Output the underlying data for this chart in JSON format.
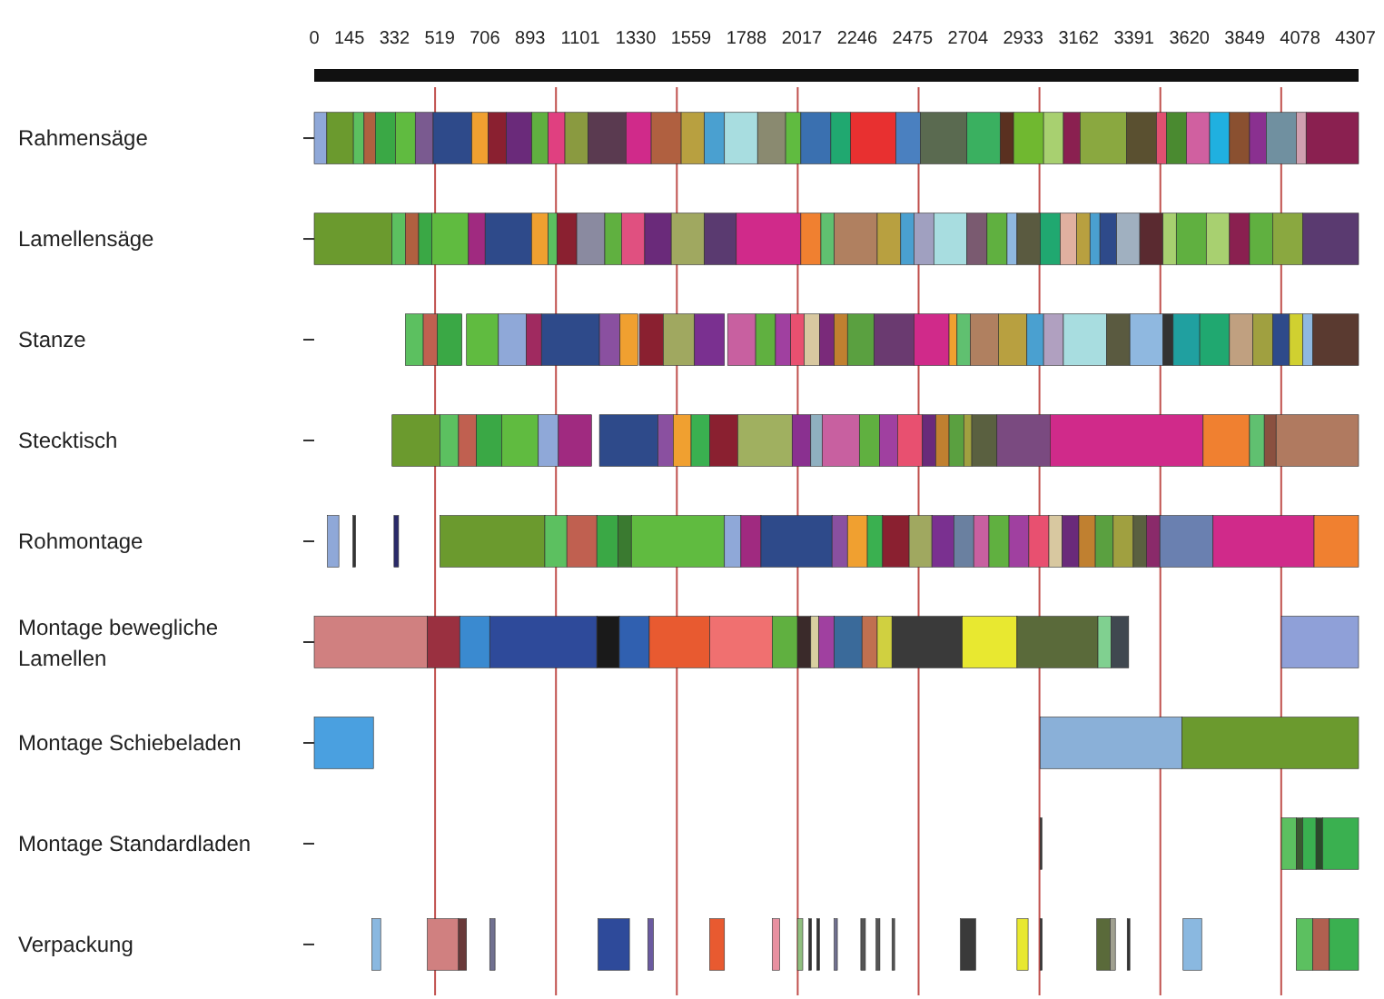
{
  "chart_data": {
    "type": "bar",
    "orientation": "horizontal",
    "categories": [
      "Rahmensäge",
      "Lamellensäge",
      "Stanze",
      "Stecktisch",
      "Rohmontage",
      "Montage bewegliche Lamellen",
      "Montage Schiebeladen",
      "Montage Standardladen",
      "Verpackung"
    ],
    "xlim": [
      0,
      4320
    ],
    "xticks": [
      0,
      145,
      332,
      519,
      706,
      893,
      1101,
      1330,
      1559,
      1788,
      2017,
      2246,
      2475,
      2704,
      2933,
      3162,
      3391,
      3620,
      3849,
      4078,
      4307
    ],
    "ref_lines": [
      {
        "axis": "x",
        "value": 500,
        "color": "#c0504d"
      },
      {
        "axis": "x",
        "value": 1000,
        "color": "#c0504d"
      },
      {
        "axis": "x",
        "value": 1500,
        "color": "#c0504d"
      },
      {
        "axis": "x",
        "value": 2000,
        "color": "#c0504d"
      },
      {
        "axis": "x",
        "value": 2500,
        "color": "#c0504d"
      },
      {
        "axis": "x",
        "value": 3000,
        "color": "#c0504d"
      },
      {
        "axis": "x",
        "value": 3500,
        "color": "#c0504d"
      },
      {
        "axis": "x",
        "value": 4000,
        "color": "#c0504d"
      }
    ],
    "series": [
      {
        "base": [
          0,
          0,
          377,
          322,
          55,
          0,
          0,
          3003,
          239
        ],
        "values": [
          52,
          322,
          74,
          198,
          47,
          468,
          245,
          7,
          36
        ],
        "colors": [
          "#8fa8d8",
          "#6b9a2e",
          "#5cc060",
          "#6b9a2e",
          "#8fa8d8",
          "#d08080",
          "#4aa0e0",
          "#333333",
          "#8ab8e0"
        ]
      },
      {
        "base": [
          52,
          322,
          451,
          520,
          160,
          468,
          3003,
          4001,
          468
        ],
        "values": [
          110,
          55,
          58,
          77,
          11,
          134,
          586,
          61,
          129
        ],
        "colors": [
          "#6b9a2e",
          "#5cc060",
          "#c06050",
          "#5cc060",
          "#333333",
          "#9a3040",
          "#8ab0d8",
          "#5cc060",
          "#d08080"
        ]
      },
      {
        "base": [
          162,
          377,
          509,
          597,
          330,
          602,
          3589,
          4062,
          597
        ],
        "values": [
          44,
          55,
          102,
          74,
          19,
          124,
          731,
          27,
          33
        ],
        "colors": [
          "#5cc060",
          "#b06040",
          "#3aa845",
          "#c06050",
          "#2a2a6a",
          "#3a8ad0",
          "#6b9a2e",
          "#3a5a30",
          "#6a3a3a"
        ]
      },
      {
        "base": [
          206,
          432,
          630,
          671,
          520,
          726,
          null,
          4089,
          726
        ],
        "values": [
          47,
          55,
          132,
          105,
          434,
          443,
          null,
          55,
          22
        ],
        "colors": [
          "#b06040",
          "#3aa845",
          "#60bb40",
          "#3aa845",
          "#6b9a2e",
          "#2e4a9a",
          null,
          "#3ab050",
          "#707090"
        ]
      },
      {
        "base": [
          253,
          487,
          762,
          776,
          954,
          1169,
          null,
          4144,
          1174
        ],
        "values": [
          83,
          151,
          115,
          151,
          91,
          93,
          null,
          27,
          130
        ],
        "colors": [
          "#3aa845",
          "#60bb40",
          "#8fa8d8",
          "#60bb40",
          "#5cc060",
          "#1a1a1a",
          null,
          "#2a4a2a",
          "#2e4a9a"
        ]
      },
      {
        "base": [
          336,
          638,
          877,
          927,
          1045,
          1262,
          null,
          4171,
          1380
        ],
        "values": [
          82,
          69,
          63,
          83,
          124,
          124,
          null,
          149,
          23
        ],
        "colors": [
          "#60bb40",
          "#a02a80",
          "#a02a60",
          "#8fa8d8",
          "#c06050",
          "#3060b0",
          null,
          "#3ab050",
          "#6a5aa0"
        ]
      },
      {
        "base": [
          418,
          707,
          940,
          1010,
          1169,
          1386,
          null,
          null,
          1636
        ],
        "values": [
          74,
          192,
          240,
          137,
          88,
          250,
          null,
          null,
          61
        ],
        "colors": [
          "#7a5a90",
          "#2e4a8a",
          "#2e4a8a",
          "#a02a80",
          "#3aa845",
          "#e85a30",
          null,
          null,
          "#e85a30"
        ]
      },
      {
        "base": [
          492,
          899,
          1180,
          1180,
          1257,
          1636,
          null,
          null,
          1895
        ],
        "values": [
          160,
          69,
          85,
          242,
          55,
          259,
          null,
          null,
          30
        ],
        "colors": [
          "#2e4a8a",
          "#f0a030",
          "#8a50a0",
          "#2e4a8a",
          "#3a7a30",
          "#f07070",
          null,
          null,
          "#e890a0"
        ]
      },
      {
        "base": [
          652,
          968,
          1265,
          1422,
          1312,
          1895,
          null,
          null,
          1999
        ],
        "values": [
          68,
          36,
          74,
          63,
          385,
          104,
          null,
          null,
          22
        ],
        "colors": [
          "#f0a030",
          "#5cc060",
          "#f0a030",
          "#8a50a0",
          "#60bb40",
          "#60b040",
          null,
          null,
          "#90c080"
        ]
      },
      {
        "base": [
          720,
          1004,
          1345,
          1485,
          1697,
          1999,
          null,
          null,
          2046
        ],
        "values": [
          75,
          82,
          99,
          74,
          68,
          55,
          null,
          null,
          11
        ],
        "colors": [
          "#8a2030",
          "#8a2030",
          "#8a2030",
          "#f0a030",
          "#8fa8d8",
          "#3a2a2a",
          null,
          null,
          "#333333"
        ]
      },
      {
        "base": [
          795,
          1086,
          1444,
          1559,
          1765,
          2054,
          null,
          null,
          2079
        ],
        "values": [
          105,
          116,
          129,
          77,
          83,
          33,
          null,
          null,
          11
        ],
        "colors": [
          "#6a2a7a",
          "#8a8aa0",
          "#a0a860",
          "#3ab050",
          "#a02a80",
          "#d8d0a0",
          null,
          null,
          "#333333"
        ]
      },
      {
        "base": [
          900,
          1202,
          1573,
          1636,
          1848,
          2087,
          null,
          null,
          2151
        ],
        "values": [
          68,
          69,
          124,
          116,
          294,
          64,
          null,
          null,
          13
        ],
        "colors": [
          "#60b040",
          "#60b040",
          "#7a3090",
          "#8a2030",
          "#2e4a8a",
          "#a040a0",
          null,
          null,
          "#707090"
        ]
      },
      {
        "base": [
          968,
          1271,
          1710,
          1752,
          2142,
          2151,
          null,
          null,
          2261
        ],
        "values": [
          69,
          96,
          116,
          225,
          64,
          115,
          null,
          null,
          19
        ],
        "colors": [
          "#e04080",
          "#e05080",
          "#c860a0",
          "#a0b060",
          "#8a50a0",
          "#3a6a9a",
          null,
          null,
          "#555555"
        ]
      },
      {
        "base": [
          1037,
          1367,
          1826,
          1977,
          2206,
          2266,
          null,
          null,
          2324
        ],
        "values": [
          96,
          110,
          82,
          77,
          82,
          63,
          null,
          null,
          16
        ],
        "colors": [
          "#8a9a40",
          "#6a2a7a",
          "#60b040",
          "#8a3090",
          "#f0a030",
          "#c07050",
          null,
          null,
          "#555555"
        ]
      },
      {
        "base": [
          1133,
          1477,
          1908,
          2054,
          2288,
          2329,
          null,
          null,
          2390
        ],
        "values": [
          157,
          137,
          63,
          47,
          63,
          61,
          null,
          null,
          11
        ],
        "colors": [
          "#5a3a50",
          "#a0a860",
          "#a040a0",
          "#8fb0c0",
          "#3ab050",
          "#d0d040",
          null,
          null,
          "#555555"
        ]
      },
      {
        "base": [
          1290,
          1614,
          1971,
          2101,
          2351,
          2390,
          null,
          null,
          2673
        ],
        "values": [
          104,
          132,
          56,
          154,
          110,
          291,
          null,
          null,
          63
        ],
        "colors": [
          "#d02a8a",
          "#5a3a70",
          "#e85070",
          "#c860a0",
          "#8a2030",
          "#3a3a3a",
          null,
          null,
          "#3a3a3a"
        ]
      },
      {
        "base": [
          1394,
          1746,
          2027,
          2255,
          2461,
          2681,
          null,
          null,
          2907
        ],
        "values": [
          124,
          267,
          63,
          83,
          94,
          226,
          null,
          null,
          46
        ],
        "colors": [
          "#b06040",
          "#d02a8a",
          "#d8c8a0",
          "#60b040",
          "#a0a860",
          "#e8e830",
          null,
          null,
          "#e8e830"
        ]
      },
      {
        "base": [
          1518,
          2013,
          2090,
          2338,
          2555,
          2907,
          null,
          null,
          3003
        ],
        "values": [
          96,
          83,
          61,
          75,
          91,
          335,
          null,
          null,
          8
        ],
        "colors": [
          "#b8a040",
          "#f08030",
          "#7a2a7a",
          "#a040a0",
          "#7a3090",
          "#5a6a3a",
          null,
          null,
          "#333333"
        ]
      },
      {
        "base": [
          1614,
          2096,
          2151,
          2413,
          2646,
          3242,
          null,
          null,
          3237
        ],
        "values": [
          83,
          55,
          55,
          103,
          82,
          55,
          null,
          null,
          55
        ],
        "colors": [
          "#4aa0d0",
          "#60c070",
          "#c08030",
          "#e85070",
          "#6a80a0",
          "#80d090",
          null,
          null,
          "#5a6a3a"
        ]
      },
      {
        "base": [
          1697,
          2151,
          2206,
          2516,
          2728,
          3297,
          null,
          null,
          3292
        ],
        "values": [
          137,
          178,
          110,
          55,
          63,
          72,
          null,
          null,
          22
        ],
        "colors": [
          "#a8dde0",
          "#b08060",
          "#5aa040",
          "#6a2a7a",
          "#c860a0",
          "#404850",
          null,
          null,
          "#a0a090"
        ]
      },
      {
        "base": [
          1834,
          2329,
          2316,
          2571,
          2791,
          4001,
          null,
          null,
          3363
        ],
        "values": [
          116,
          97,
          165,
          55,
          83,
          319,
          null,
          null,
          11
        ],
        "colors": [
          "#8a8a70",
          "#b8a040",
          "#6a3a70",
          "#c08030",
          "#60b040",
          "#8fa0d8",
          null,
          null,
          "#333333"
        ]
      },
      {
        "base": [
          1950,
          2426,
          2481,
          2626,
          2874,
          null,
          null,
          null,
          3594
        ],
        "values": [
          63,
          55,
          145,
          61,
          82,
          null,
          null,
          null,
          77
        ],
        "colors": [
          "#60bb40",
          "#4aa0d0",
          "#d02a8a",
          "#5aa040",
          "#a040a0",
          null,
          null,
          null,
          "#8ab8e0"
        ]
      },
      {
        "base": [
          2013,
          2481,
          2626,
          2687,
          2956,
          null,
          null,
          null,
          4062
        ],
        "values": [
          124,
          82,
          33,
          33,
          83,
          null,
          null,
          null,
          69
        ],
        "colors": [
          "#3a70b0",
          "#a0a0c0",
          "#f0a030",
          "#a0a040",
          "#e85070",
          null,
          null,
          null,
          "#5cc060"
        ]
      },
      {
        "base": [
          2137,
          2563,
          2659,
          2720,
          3039,
          null,
          null,
          null,
          4131
        ],
        "values": [
          82,
          137,
          55,
          104,
          55,
          null,
          null,
          null,
          68
        ],
        "colors": [
          "#20a870",
          "#a8dde0",
          "#60c070",
          "#5a6040",
          "#d8c8a0",
          null,
          null,
          null,
          "#b06050"
        ]
      },
      {
        "base": [
          2219,
          2700,
          2714,
          2824,
          3094,
          null,
          null,
          null,
          4199
        ],
        "values": [
          187,
          83,
          116,
          220,
          69,
          null,
          null,
          null,
          121
        ],
        "colors": [
          "#e83030",
          "#7a5a70",
          "#b08060",
          "#7a4a80",
          "#6a2a7a",
          null,
          null,
          null,
          "#3ab050"
        ]
      },
      {
        "base": [
          2406,
          2783,
          2830,
          3044,
          3163,
          null,
          null,
          null,
          null
        ],
        "values": [
          102,
          83,
          118,
          633,
          68,
          null,
          null,
          null,
          null
        ],
        "colors": [
          "#4a80c0",
          "#60b040",
          "#b8a040",
          "#d02a8a",
          "#c08030",
          null,
          null,
          null,
          null
        ]
      },
      {
        "base": [
          2508,
          2866,
          2948,
          3677,
          3231,
          null,
          null,
          null,
          null
        ],
        "values": [
          192,
          41,
          69,
          192,
          74,
          null,
          null,
          null,
          null
        ],
        "colors": [
          "#5a6a50",
          "#8fb8e0",
          "#4aa0d0",
          "#f08030",
          "#5aa040",
          null,
          null,
          null,
          null
        ]
      },
      {
        "base": [
          2700,
          2907,
          3017,
          3869,
          3305,
          null,
          null,
          null,
          null
        ],
        "values": [
          138,
          96,
          82,
          61,
          83,
          null,
          null,
          null,
          null
        ],
        "colors": [
          "#3ab060",
          "#5a5a40",
          "#b0a0c0",
          "#60c070",
          "#a0a040",
          null,
          null,
          null,
          null
        ]
      },
      {
        "base": [
          2838,
          3003,
          3099,
          3930,
          3388,
          null,
          null,
          null,
          null
        ],
        "values": [
          55,
          83,
          179,
          49,
          55,
          null,
          null,
          null,
          null
        ],
        "colors": [
          "#5a3020",
          "#20a870",
          "#a8dde0",
          "#8a5040",
          "#5a6040",
          null,
          null,
          null,
          null
        ]
      },
      {
        "base": [
          2893,
          3086,
          3278,
          3979,
          3443,
          null,
          null,
          null,
          null
        ],
        "values": [
          124,
          68,
          96,
          341,
          55,
          null,
          null,
          null,
          null
        ],
        "colors": [
          "#70b830",
          "#e0b0a0",
          "#5a5a40",
          "#b07a60",
          "#8a2a6a",
          null,
          null,
          null,
          null
        ]
      },
      {
        "base": [
          3017,
          3154,
          3374,
          null,
          3498,
          null,
          null,
          null,
          null
        ],
        "values": [
          82,
          55,
          137,
          null,
          220,
          null,
          null,
          null,
          null
        ],
        "colors": [
          "#a8d070",
          "#b8a040",
          "#8fb8e0",
          null,
          "#6a80b0",
          null,
          null,
          null,
          null
        ]
      },
      {
        "base": [
          3099,
          3209,
          3511,
          null,
          3718,
          null,
          null,
          null,
          null
        ],
        "values": [
          69,
          41,
          42,
          null,
          418,
          null,
          null,
          null,
          null
        ],
        "colors": [
          "#8a2050",
          "#4aa0d0",
          "#333333",
          null,
          "#d02a8a",
          null,
          null,
          null,
          null
        ]
      },
      {
        "base": [
          3168,
          3250,
          3553,
          null,
          4136,
          null,
          null,
          null,
          null
        ],
        "values": [
          192,
          69,
          110,
          null,
          184,
          null,
          null,
          null,
          null
        ],
        "colors": [
          "#8aa840",
          "#2e4a8a",
          "#20a0a0",
          null,
          "#f08030",
          null,
          null,
          null,
          null
        ]
      },
      {
        "base": [
          3360,
          3319,
          3663,
          null,
          null,
          null,
          null,
          null,
          null
        ],
        "values": [
          124,
          96,
          123,
          null,
          null,
          null,
          null,
          null,
          null
        ],
        "colors": [
          "#5a5030",
          "#a0b0c0",
          "#20a870",
          null,
          null,
          null,
          null,
          null,
          null
        ]
      },
      {
        "base": [
          3484,
          3415,
          3786,
          null,
          null,
          null,
          null,
          null,
          null
        ],
        "values": [
          41,
          96,
          97,
          null,
          null,
          null,
          null,
          null,
          null
        ],
        "colors": [
          "#e05070",
          "#5a2a30",
          "#c0a080",
          null,
          null,
          null,
          null,
          null,
          null
        ]
      },
      {
        "base": [
          3525,
          3511,
          3883,
          null,
          null,
          null,
          null,
          null,
          null
        ],
        "values": [
          83,
          55,
          82,
          null,
          null,
          null,
          null,
          null,
          null
        ],
        "colors": [
          "#4a8a30",
          "#a8d070",
          "#a0a040",
          null,
          null,
          null,
          null,
          null,
          null
        ]
      },
      {
        "base": [
          3608,
          3566,
          3965,
          null,
          null,
          null,
          null,
          null,
          null
        ],
        "values": [
          96,
          124,
          69,
          null,
          null,
          null,
          null,
          null,
          null
        ],
        "colors": [
          "#d060a0",
          "#60b040",
          "#2e4a8a",
          null,
          null,
          null,
          null,
          null,
          null
        ]
      },
      {
        "base": [
          3704,
          3690,
          4034,
          null,
          null,
          null,
          null,
          null,
          null
        ],
        "values": [
          82,
          96,
          55,
          null,
          null,
          null,
          null,
          null,
          null
        ],
        "colors": [
          "#20b0e0",
          "#a8d070",
          "#d0d030",
          null,
          null,
          null,
          null,
          null,
          null
        ]
      },
      {
        "base": [
          3786,
          3786,
          4089,
          null,
          null,
          null,
          null,
          null,
          null
        ],
        "values": [
          83,
          83,
          42,
          null,
          null,
          null,
          null,
          null,
          null
        ],
        "colors": [
          "#8a5030",
          "#8a2050",
          "#8fb8e0",
          null,
          null,
          null,
          null,
          null,
          null
        ]
      },
      {
        "base": [
          3869,
          3869,
          4131,
          null,
          null,
          null,
          null,
          null,
          null
        ],
        "values": [
          69,
          96,
          189,
          null,
          null,
          null,
          null,
          null,
          null
        ],
        "colors": [
          "#8a3090",
          "#60b040",
          "#5a3a30",
          null,
          null,
          null,
          null,
          null,
          null
        ]
      },
      {
        "base": [
          3938,
          3965,
          null,
          null,
          null,
          null,
          null,
          null,
          null
        ],
        "values": [
          124,
          124,
          null,
          null,
          null,
          null,
          null,
          null,
          null
        ],
        "colors": [
          "#7090a0",
          "#8aa840",
          null,
          null,
          null,
          null,
          null,
          null,
          null
        ]
      },
      {
        "base": [
          4062,
          4089,
          null,
          null,
          null,
          null,
          null,
          null,
          null
        ],
        "values": [
          41,
          231,
          null,
          null,
          null,
          null,
          null,
          null,
          null
        ],
        "colors": [
          "#d0a0b0",
          "#5a3a70",
          null,
          null,
          null,
          null,
          null,
          null,
          null
        ]
      },
      {
        "base": [
          4103,
          null,
          null,
          null,
          null,
          null,
          null,
          null,
          null
        ],
        "values": [
          217,
          null,
          null,
          null,
          null,
          null,
          null,
          null,
          null
        ],
        "colors": [
          "#8a2050",
          null,
          null,
          null,
          null,
          null,
          null,
          null,
          null
        ]
      }
    ]
  }
}
